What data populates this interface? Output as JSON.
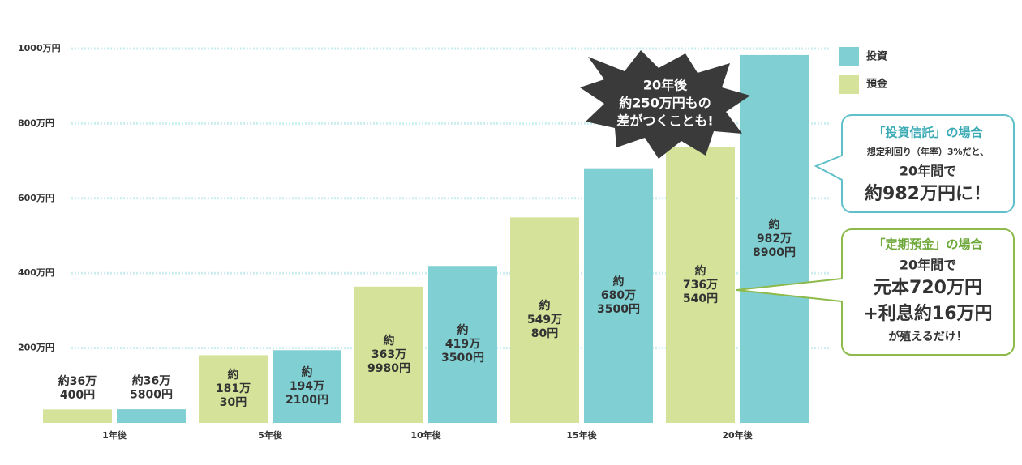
{
  "chart_data": {
    "type": "bar",
    "categories": [
      "1年後",
      "5年後",
      "10年後",
      "15年後",
      "20年後"
    ],
    "series": [
      {
        "name": "預金",
        "color": "#d5e39a",
        "values": [
          36.04,
          181.003,
          363.998,
          549.008,
          736.054
        ],
        "value_labels": [
          "約36万\n400円",
          "約\n181万\n30円",
          "約\n363万\n9980円",
          "約\n549万\n80円",
          "約\n736万\n540円"
        ]
      },
      {
        "name": "投資",
        "color": "#7fcfd3",
        "values": [
          36.58,
          194.21,
          419.35,
          680.35,
          982.89
        ],
        "value_labels": [
          "約36万\n5800円",
          "約\n194万\n2100円",
          "約\n419万\n3500円",
          "約\n680万\n3500円",
          "約\n982万\n8900円"
        ]
      }
    ],
    "ylim": [
      0,
      1000
    ],
    "yticks": [
      {
        "value": 200,
        "label": "200万円"
      },
      {
        "value": 400,
        "label": "400万円"
      },
      {
        "value": 600,
        "label": "600万円"
      },
      {
        "value": 800,
        "label": "800万円"
      },
      {
        "value": 1000,
        "label": "1000万円"
      }
    ],
    "grid": true,
    "legend": "right",
    "annotations": {
      "burst": [
        "20年後",
        "約250万円もの",
        "差がつくことも!"
      ],
      "investment_callout": [
        "「投資信託」の場合",
        "想定利回り（年率）3%だと、",
        "20年間で",
        "約982万円に！"
      ],
      "deposit_callout": [
        "「定期預金」の場合",
        "20年間で",
        "元本720万円",
        "+利息約16万円",
        "が殖えるだけ！"
      ]
    }
  }
}
